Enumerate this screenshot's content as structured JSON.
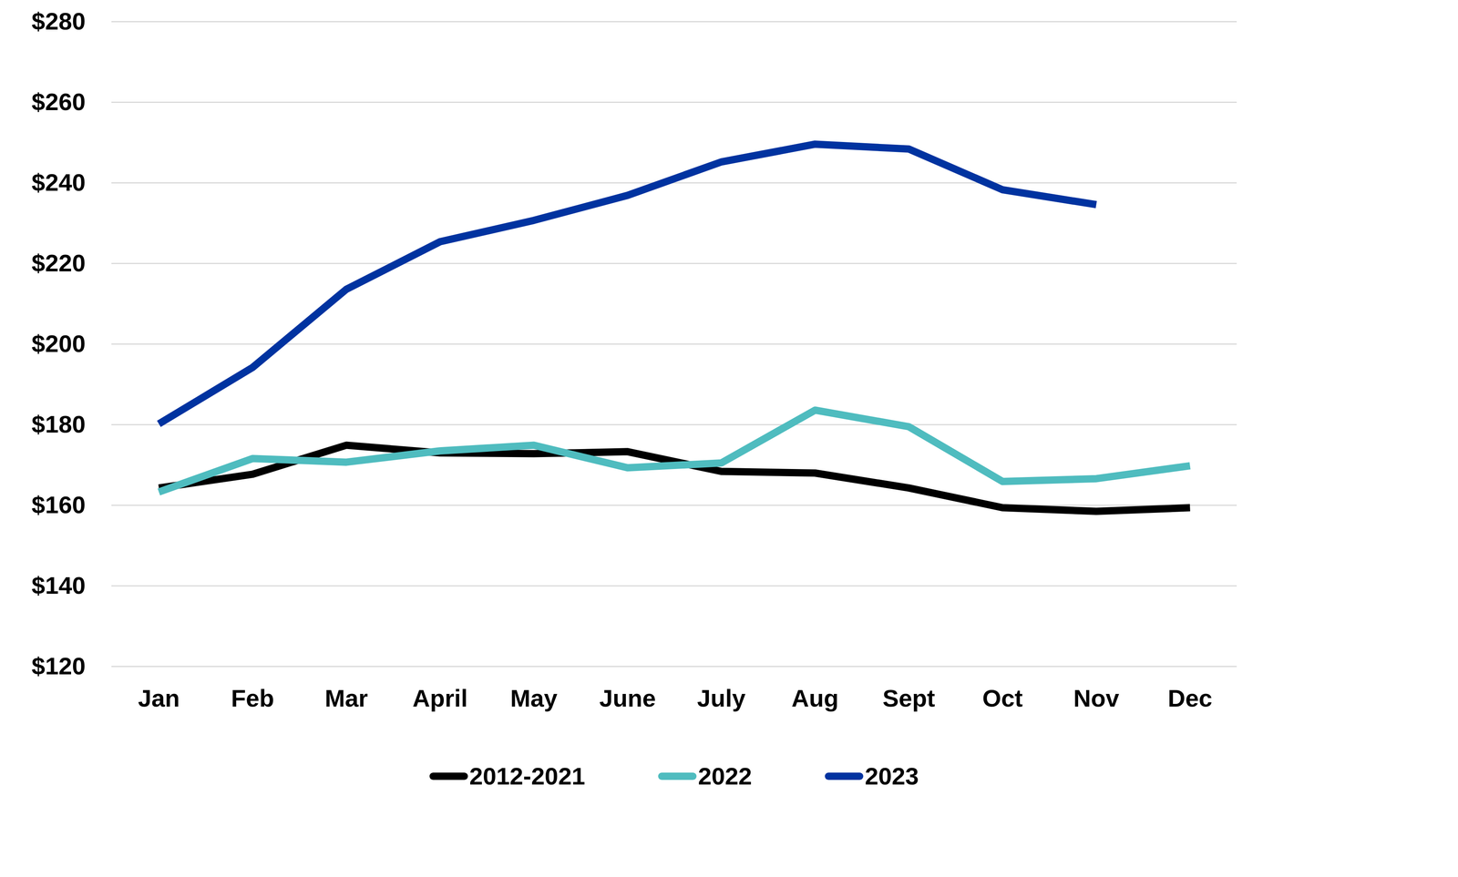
{
  "chart_data": {
    "type": "line",
    "categories": [
      "Jan",
      "Feb",
      "Mar",
      "April",
      "May",
      "June",
      "July",
      "Aug",
      "Sept",
      "Oct",
      "Nov",
      "Dec"
    ],
    "series": [
      {
        "name": "2012-2021",
        "color": "#000000",
        "values": [
          164.3,
          167.7,
          174.9,
          173.0,
          172.8,
          173.3,
          168.4,
          168.0,
          164.3,
          159.4,
          158.5,
          159.4
        ]
      },
      {
        "name": "2022",
        "color": "#4fbcbf",
        "values": [
          163.3,
          171.6,
          170.7,
          173.5,
          174.9,
          169.3,
          170.5,
          183.6,
          179.5,
          165.9,
          166.6,
          169.8
        ]
      },
      {
        "name": "2023",
        "color": "#0033a0",
        "values": [
          180.2,
          194.2,
          213.6,
          225.4,
          230.7,
          236.9,
          245.2,
          249.6,
          248.4,
          238.3,
          234.6,
          null
        ]
      }
    ],
    "ylim": [
      120,
      280
    ],
    "yticks": [
      {
        "value": 120,
        "label": "$120"
      },
      {
        "value": 140,
        "label": "$140"
      },
      {
        "value": 160,
        "label": "$160"
      },
      {
        "value": 180,
        "label": "$180"
      },
      {
        "value": 200,
        "label": "$200"
      },
      {
        "value": 220,
        "label": "$220"
      },
      {
        "value": 240,
        "label": "$240"
      },
      {
        "value": 260,
        "label": "$260"
      },
      {
        "value": 280,
        "label": "$280"
      }
    ],
    "grid": true,
    "legend": "bottom"
  }
}
